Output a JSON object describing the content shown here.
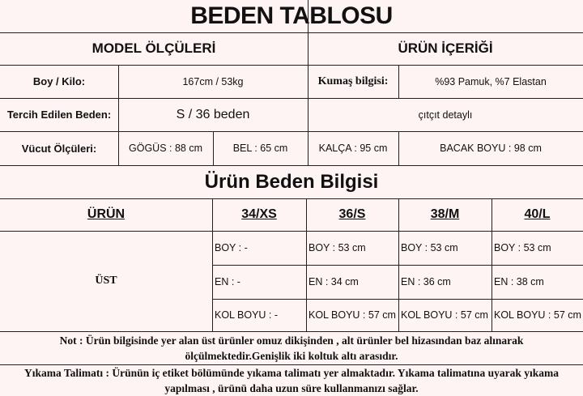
{
  "title": "BEDEN TABLOSU",
  "model": {
    "heading": "MODEL ÖLÇÜLERİ",
    "boy_kilo_label": "Boy / Kilo:",
    "boy_kilo_value": "167cm / 53kg",
    "beden_label": "Tercih Edilen Beden:",
    "beden_value": "S / 36 beden",
    "vucut_label": "Vücut Ölçüleri:",
    "gogus": "GÖGÜS : 88 cm",
    "bel": "BEL : 65 cm"
  },
  "urun": {
    "heading": "ÜRÜN İÇERİĞİ",
    "kumas_label": "Kumaş bilgisi:",
    "kumas_value": "%93 Pamuk, %7 Elastan",
    "detay": "çıtçıt detaylı",
    "kalca": "KALÇA : 95 cm",
    "bacak": "BACAK BOYU : 98 cm"
  },
  "size_table": {
    "heading": "Ürün Beden Bilgisi",
    "columns": [
      "ÜRÜN",
      "34/XS",
      "36/S",
      "38/M",
      "40/L"
    ],
    "product": "ÜST",
    "rows": [
      [
        "BOY : -",
        "BOY : 53 cm",
        "BOY : 53 cm",
        "BOY : 53 cm"
      ],
      [
        "EN : -",
        "EN : 34 cm",
        "EN : 36 cm",
        "EN : 38 cm"
      ],
      [
        "KOL BOYU : -",
        "KOL BOYU : 57 cm",
        "KOL BOYU : 57 cm",
        "KOL BOYU : 57 cm"
      ]
    ]
  },
  "note": "Not : Ürün bilgisinde yer alan üst ürünler omuz dikişinden , alt ürünler bel hizasından baz alınarak ölçülmektedir.Genişlik iki koltuk altı arasıdır.",
  "wash": "Yıkama Talimatı : Ürünün iç etiket bölümünde yıkama talimatı yer almaktadır. Yıkama talimatına uyarak yıkama yapılması , ürünü daha uzun süre kullanmanızı sağlar."
}
